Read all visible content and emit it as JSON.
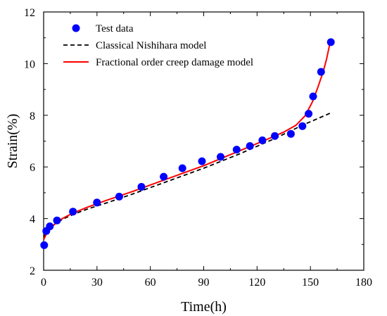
{
  "chart_data": {
    "type": "scatter",
    "xlabel": "Time(h)",
    "ylabel": "Strain(%)",
    "xlim": [
      0,
      180
    ],
    "ylim": [
      2,
      12
    ],
    "xticks": [
      0,
      30,
      60,
      90,
      120,
      150,
      180
    ],
    "yticks": [
      2,
      4,
      6,
      8,
      10,
      12
    ],
    "grid": false,
    "legend_position": "top-left",
    "series": [
      {
        "name": "Test data",
        "kind": "scatter",
        "color": "#0000ff",
        "points": [
          [
            0.3,
            2.97
          ],
          [
            1.5,
            3.52
          ],
          [
            3.5,
            3.7
          ],
          [
            7.5,
            3.93
          ],
          [
            16.5,
            4.27
          ],
          [
            30.0,
            4.62
          ],
          [
            42.5,
            4.85
          ],
          [
            55.0,
            5.23
          ],
          [
            67.5,
            5.62
          ],
          [
            78.0,
            5.95
          ],
          [
            89.0,
            6.22
          ],
          [
            99.5,
            6.39
          ],
          [
            108.5,
            6.67
          ],
          [
            116.0,
            6.81
          ],
          [
            123.0,
            7.03
          ],
          [
            130.0,
            7.2
          ],
          [
            139.0,
            7.28
          ],
          [
            145.5,
            7.58
          ],
          [
            149.0,
            8.06
          ],
          [
            151.5,
            8.73
          ],
          [
            156.0,
            9.68
          ],
          [
            161.5,
            10.83
          ]
        ]
      },
      {
        "name": "Classical Nishihara model",
        "kind": "line",
        "dash": true,
        "color": "#000000",
        "points": [
          [
            0,
            3.3
          ],
          [
            3,
            3.58
          ],
          [
            7,
            3.83
          ],
          [
            12,
            4.02
          ],
          [
            18,
            4.2
          ],
          [
            25,
            4.38
          ],
          [
            35,
            4.6
          ],
          [
            50,
            4.95
          ],
          [
            70,
            5.45
          ],
          [
            90,
            5.95
          ],
          [
            110,
            6.5
          ],
          [
            130,
            7.1
          ],
          [
            145,
            7.6
          ],
          [
            161,
            8.08
          ]
        ]
      },
      {
        "name": "Fractional order creep damage model",
        "kind": "line",
        "dash": false,
        "color": "#ff0000",
        "points": [
          [
            0,
            3.18
          ],
          [
            2,
            3.48
          ],
          [
            5,
            3.72
          ],
          [
            10,
            3.98
          ],
          [
            16,
            4.2
          ],
          [
            25,
            4.45
          ],
          [
            35,
            4.7
          ],
          [
            50,
            5.05
          ],
          [
            70,
            5.55
          ],
          [
            90,
            6.05
          ],
          [
            110,
            6.62
          ],
          [
            125,
            7.05
          ],
          [
            135,
            7.35
          ],
          [
            142,
            7.62
          ],
          [
            147,
            7.98
          ],
          [
            151,
            8.5
          ],
          [
            154,
            9.05
          ],
          [
            157,
            9.65
          ],
          [
            159,
            10.15
          ],
          [
            161,
            10.8
          ]
        ]
      }
    ]
  }
}
